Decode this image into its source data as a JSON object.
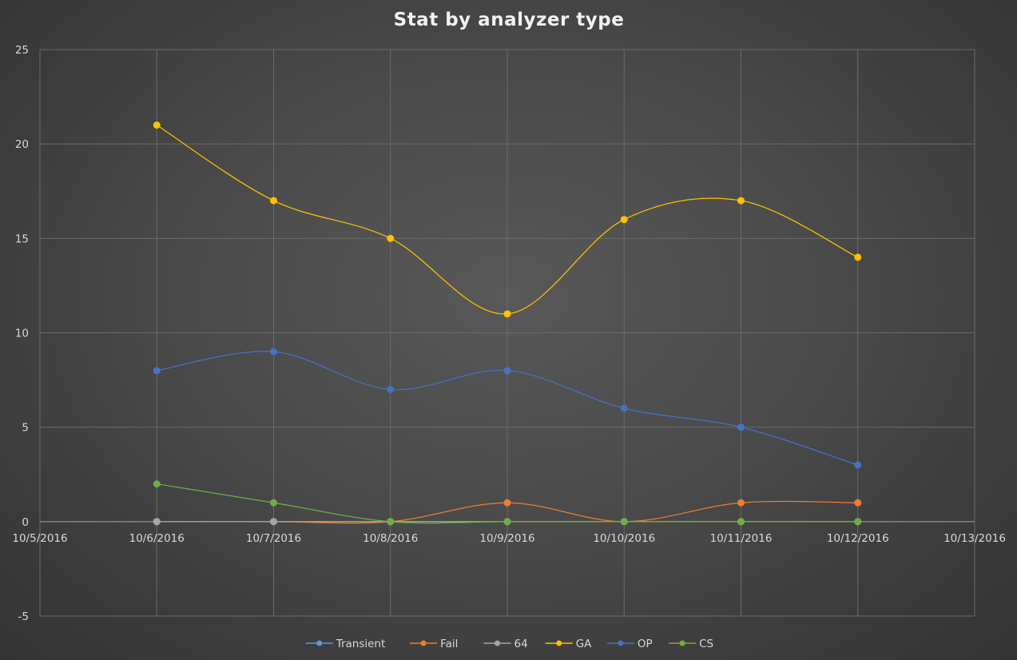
{
  "chart_data": {
    "type": "line",
    "title": "Stat by analyzer type",
    "xlabel": "",
    "ylabel": "",
    "x_tick_labels": [
      "10/5/2016",
      "10/6/2016",
      "10/7/2016",
      "10/8/2016",
      "10/9/2016",
      "10/10/2016",
      "10/11/2016",
      "10/12/2016",
      "10/13/2016"
    ],
    "x": [
      "10/6/2016",
      "10/7/2016",
      "10/8/2016",
      "10/9/2016",
      "10/10/2016",
      "10/11/2016",
      "10/12/2016"
    ],
    "xlim": [
      "10/5/2016",
      "10/13/2016"
    ],
    "ylim": [
      -5,
      25
    ],
    "y_ticks": [
      -5,
      0,
      5,
      10,
      15,
      20,
      25
    ],
    "grid": true,
    "legend_position": "bottom",
    "smooth": true,
    "series": [
      {
        "name": "Transient",
        "color": "#5b9bd5",
        "values": [
          0,
          0,
          0,
          0,
          0,
          0,
          0
        ]
      },
      {
        "name": "Fail",
        "color": "#ed7d31",
        "values": [
          0,
          0,
          0,
          1,
          0,
          1,
          1
        ]
      },
      {
        "name": "64",
        "color": "#a5a5a5",
        "values": [
          0,
          0,
          0,
          0,
          0,
          0,
          0
        ]
      },
      {
        "name": "GA",
        "color": "#ffc000",
        "values": [
          21,
          17,
          15,
          11,
          16,
          17,
          14
        ]
      },
      {
        "name": "OP",
        "color": "#4472c4",
        "values": [
          8,
          9,
          7,
          8,
          6,
          5,
          3
        ]
      },
      {
        "name": "CS",
        "color": "#70ad47",
        "values": [
          2,
          1,
          0,
          0,
          0,
          0,
          0
        ]
      }
    ]
  }
}
